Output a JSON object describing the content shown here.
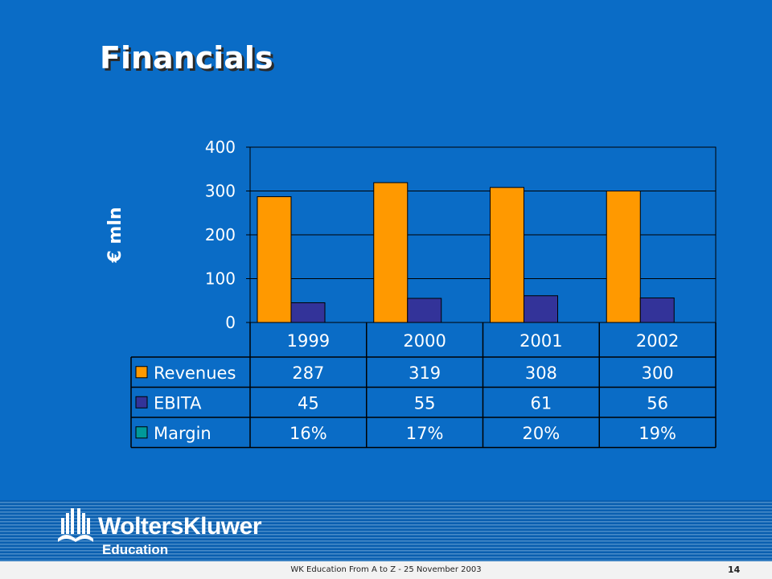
{
  "slide": {
    "title": "Financials"
  },
  "chart_data": {
    "type": "bar",
    "title": "",
    "ylabel": "€ mln",
    "ylim": [
      0,
      400
    ],
    "yticks": [
      0,
      100,
      200,
      300,
      400
    ],
    "categories": [
      "1999",
      "2000",
      "2001",
      "2002"
    ],
    "series": [
      {
        "name": "Revenues",
        "color": "#ff9900",
        "values": [
          287,
          319,
          308,
          300
        ],
        "labels": [
          "287",
          "319",
          "308",
          "300"
        ]
      },
      {
        "name": "EBITA",
        "color": "#333399",
        "values": [
          45,
          55,
          61,
          56
        ],
        "labels": [
          "45",
          "55",
          "61",
          "56"
        ]
      }
    ],
    "table_extra_rows": [
      {
        "name": "Margin",
        "color": "#009999",
        "labels": [
          "16%",
          "17%",
          "20%",
          "19%"
        ]
      }
    ],
    "grid": true,
    "legend": "data-table"
  },
  "footer": {
    "brand": "WoltersKluwer",
    "division": "Education",
    "caption": "WK Education From A to Z - 25 November 2003",
    "page": "14"
  }
}
